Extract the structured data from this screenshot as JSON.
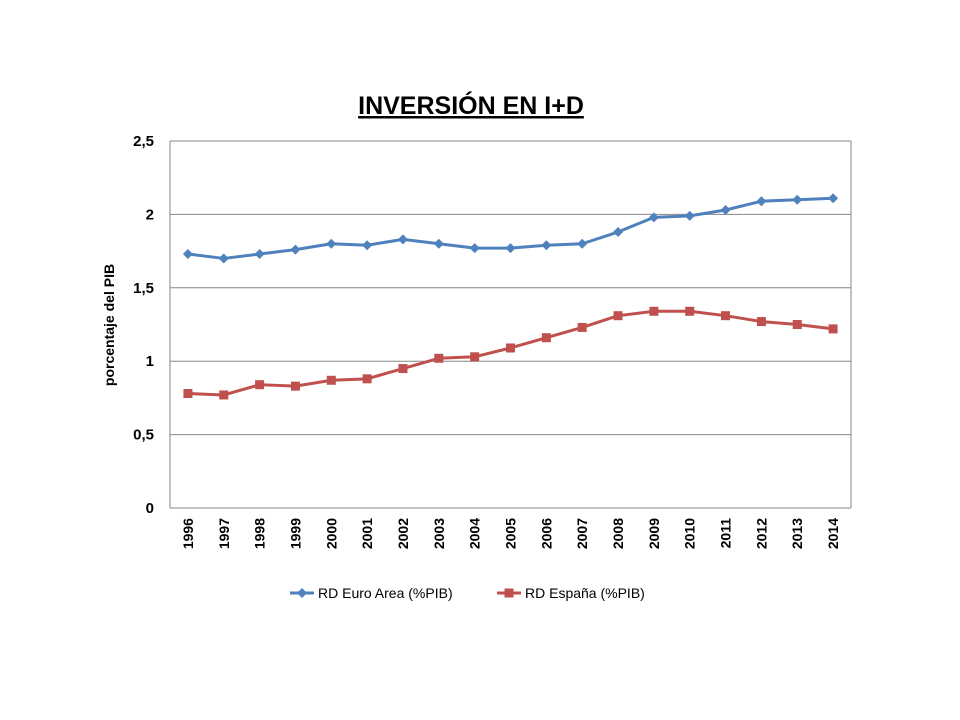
{
  "chart_data": {
    "type": "line",
    "title": "INVERSIÓN EN I+D",
    "xlabel": "",
    "ylabel": "porcentaje del PIB",
    "ylim": [
      0,
      2.5
    ],
    "yticks": [
      "0",
      "0,5",
      "1",
      "1,5",
      "2",
      "2,5"
    ],
    "ytick_values": [
      0,
      0.5,
      1,
      1.5,
      2,
      2.5
    ],
    "categories": [
      "1996",
      "1997",
      "1998",
      "1999",
      "2000",
      "2001",
      "2002",
      "2003",
      "2004",
      "2005",
      "2006",
      "2007",
      "2008",
      "2009",
      "2010",
      "2011",
      "2012",
      "2013",
      "2014"
    ],
    "grid": true,
    "legend_position": "bottom",
    "series": [
      {
        "name": "RD Euro Area (%PIB)",
        "color": "#4F81BD",
        "marker": "diamond",
        "values": [
          1.73,
          1.7,
          1.73,
          1.76,
          1.8,
          1.79,
          1.83,
          1.8,
          1.77,
          1.77,
          1.79,
          1.8,
          1.88,
          1.98,
          1.99,
          2.03,
          2.09,
          2.1,
          2.11
        ]
      },
      {
        "name": "RD España (%PIB)",
        "color": "#C0504D",
        "marker": "square",
        "values": [
          0.78,
          0.77,
          0.84,
          0.83,
          0.87,
          0.88,
          0.95,
          1.02,
          1.03,
          1.09,
          1.16,
          1.23,
          1.31,
          1.34,
          1.34,
          1.31,
          1.27,
          1.25,
          1.22
        ]
      }
    ]
  }
}
